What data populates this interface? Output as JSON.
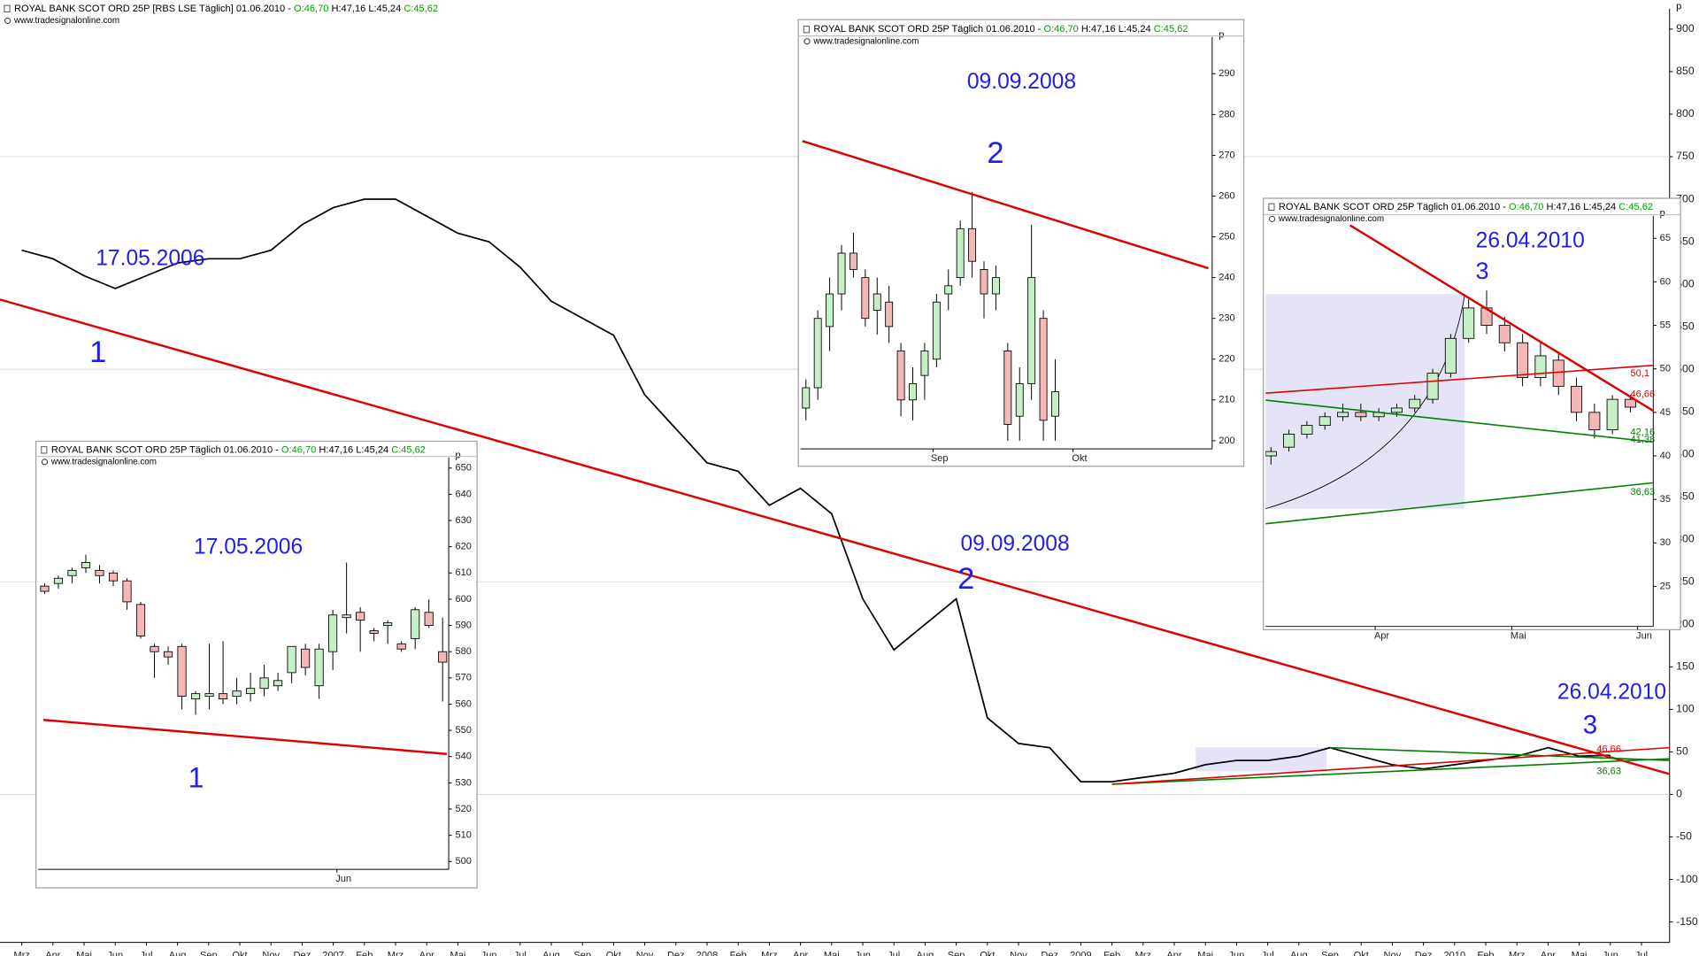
{
  "chart_data": [
    {
      "type": "line",
      "title": "ROYAL BANK SCOT ORD 25P [RBS LSE  Täglich] 01.06.2010 - ",
      "ohlc": [
        "O:46,70",
        "H:47,16",
        "L:45,24",
        "C:45,62"
      ],
      "ohlc_colors": [
        "#00a000",
        "#000000",
        "#000000",
        "#00a000"
      ],
      "source": "www.tradesignalonline.com",
      "y_unit": "p",
      "categories": [
        "Mrz",
        "Apr",
        "Mai",
        "Jun",
        "Jul",
        "Aug",
        "Sep",
        "Okt",
        "Nov",
        "Dez",
        "2007",
        "Feb",
        "Mrz",
        "Apr",
        "Mai",
        "Jun",
        "Jul",
        "Aug",
        "Sep",
        "Okt",
        "Nov",
        "Dez",
        "2008",
        "Feb",
        "Mrz",
        "Apr",
        "Mai",
        "Jun",
        "Jul",
        "Aug",
        "Sep",
        "Okt",
        "Nov",
        "Dez",
        "2009",
        "Feb",
        "Mrz",
        "Apr",
        "Mai",
        "Jun",
        "Jul",
        "Aug",
        "Sep",
        "Okt",
        "Nov",
        "Dez",
        "2010",
        "Feb",
        "Mrz",
        "Apr",
        "Mai",
        "Jun",
        "Jul"
      ],
      "values": [
        640,
        630,
        610,
        595,
        610,
        625,
        630,
        630,
        640,
        670,
        690,
        700,
        700,
        680,
        660,
        650,
        620,
        580,
        560,
        540,
        470,
        430,
        390,
        380,
        340,
        360,
        330,
        230,
        170,
        200,
        230,
        90,
        60,
        55,
        15,
        15,
        20,
        25,
        35,
        40,
        40,
        45,
        55,
        45,
        35,
        30,
        35,
        40,
        45,
        55,
        45,
        46,
        null
      ],
      "color": "#000000",
      "ylim": [
        -174,
        924
      ],
      "yticks": [
        900,
        850,
        800,
        750,
        700,
        650,
        600,
        550,
        500,
        450,
        400,
        350,
        300,
        250,
        200,
        150,
        100,
        50,
        0,
        -50,
        -100,
        -150
      ],
      "grid": true,
      "grid_values": [
        750,
        500,
        250,
        0
      ],
      "lines": [
        {
          "color": "#e00000",
          "start": [
            -0.7,
            582
          ],
          "end": [
            52.9,
            24
          ]
        },
        {
          "color": "#008000",
          "start": [
            42,
            55
          ],
          "end": [
            52.9,
            40
          ]
        },
        {
          "color": "#008000",
          "start": [
            35,
            12
          ],
          "end": [
            52.9,
            42
          ]
        },
        {
          "color": "#e00000",
          "start": [
            35,
            12
          ],
          "end": [
            52.9,
            55
          ]
        }
      ],
      "annotations": [
        {
          "text": "17.05.2006",
          "color": "#1e1ee6"
        },
        {
          "text": "1",
          "color": "#1e1ee6"
        },
        {
          "text": "09.09.2008",
          "color": "#1e1ee6"
        },
        {
          "text": "2",
          "color": "#1e1ee6"
        },
        {
          "text": "26.04.2010",
          "color": "#1e1ee6"
        },
        {
          "text": "3",
          "color": "#1e1ee6"
        },
        {
          "text": "46,66",
          "color": "#e00000"
        },
        {
          "text": "36,63",
          "color": "#008000"
        }
      ]
    },
    {
      "type": "candlestick",
      "title": "ROYAL BANK SCOT ORD 25P Täglich  01.06.2010 - ",
      "ohlc": [
        "O:46,70",
        "H:47,16",
        "L:45,24",
        "C:45,62"
      ],
      "ohlc_colors": [
        "#00a000",
        "#000000",
        "#000000",
        "#00a000"
      ],
      "source": "www.tradesignalonline.com",
      "y_unit": "p",
      "open": [
        605,
        606,
        609,
        612,
        611,
        610,
        607,
        598,
        582,
        580,
        582,
        562,
        563,
        564,
        563,
        564,
        566,
        567,
        572,
        581,
        567,
        580,
        593,
        595,
        588,
        590,
        583,
        585,
        595,
        580
      ],
      "high": [
        606,
        609,
        612,
        617,
        613,
        611,
        608,
        599,
        583,
        582,
        583,
        565,
        583,
        584,
        570,
        572,
        575,
        572,
        582,
        583,
        583,
        596,
        614,
        597,
        589,
        592,
        584,
        597,
        600,
        593
      ],
      "low": [
        602,
        604,
        606,
        610,
        606,
        605,
        596,
        585,
        570,
        575,
        558,
        556,
        558,
        560,
        560,
        561,
        563,
        565,
        568,
        571,
        562,
        573,
        587,
        580,
        584,
        583,
        580,
        581,
        589,
        561
      ],
      "close": [
        603,
        608,
        611,
        614,
        609,
        607,
        599,
        586,
        580,
        578,
        563,
        564,
        564,
        562,
        565,
        566,
        570,
        569,
        582,
        574,
        581,
        594,
        594,
        592,
        587,
        591,
        581,
        596,
        590,
        576
      ],
      "up_color": "#c8eec8",
      "down_color": "#f2b8b8",
      "x_labels": [
        "Jun"
      ],
      "x_label_at": [
        21.3
      ],
      "ylim": [
        497,
        654
      ],
      "yticks": [
        650,
        640,
        630,
        620,
        610,
        600,
        590,
        580,
        570,
        560,
        550,
        540,
        530,
        520,
        510,
        500
      ],
      "lines": [
        {
          "color": "#e00000",
          "start": [
            -0.1,
            554
          ],
          "end": [
            29.3,
            541
          ]
        }
      ],
      "annotations": [
        {
          "text": "17.05.2006",
          "color": "#1e1ee6"
        },
        {
          "text": "1",
          "color": "#1e1ee6"
        }
      ]
    },
    {
      "type": "candlestick",
      "title": "ROYAL BANK SCOT ORD 25P Täglich  01.06.2010 - ",
      "ohlc": [
        "O:46,70",
        "H:47,16",
        "L:45,24",
        "C:45,62"
      ],
      "ohlc_colors": [
        "#00a000",
        "#000000",
        "#000000",
        "#00a000"
      ],
      "source": "www.tradesignalonline.com",
      "y_unit": "p",
      "open": [
        208,
        213,
        228,
        236,
        246,
        240,
        232,
        234,
        222,
        210,
        216,
        220,
        236,
        240,
        252,
        242,
        236,
        222,
        206,
        214,
        230,
        206
      ],
      "high": [
        215,
        232,
        240,
        248,
        251,
        242,
        240,
        238,
        224,
        218,
        224,
        236,
        242,
        254,
        261,
        244,
        243,
        224,
        218,
        253,
        232,
        220
      ],
      "low": [
        205,
        210,
        222,
        232,
        240,
        228,
        226,
        224,
        206,
        205,
        210,
        218,
        232,
        238,
        240,
        230,
        232,
        200,
        200,
        210,
        200,
        200
      ],
      "close": [
        213,
        230,
        236,
        246,
        242,
        230,
        236,
        228,
        210,
        214,
        222,
        234,
        238,
        252,
        244,
        236,
        240,
        204,
        214,
        240,
        205,
        212
      ],
      "up_color": "#c8eec8",
      "down_color": "#f2b8b8",
      "x_labels": [
        "Sep",
        "Okt"
      ],
      "x_label_at": [
        10.7,
        22.5
      ],
      "ylim": [
        198,
        299
      ],
      "yticks": [
        290,
        280,
        270,
        260,
        250,
        240,
        230,
        220,
        210,
        200
      ],
      "lines": [
        {
          "color": "#e00000",
          "start": [
            -0.3,
            273.5
          ],
          "end": [
            33.9,
            242.3
          ]
        }
      ],
      "annotations": [
        {
          "text": "09.09.2008",
          "color": "#1e1ee6"
        },
        {
          "text": "2",
          "color": "#1e1ee6"
        }
      ]
    },
    {
      "type": "candlestick",
      "title": "ROYAL BANK SCOT ORD 25P Täglich  01.06.2010 - ",
      "ohlc": [
        "O:46,70",
        "H:47,16",
        "L:45,24",
        "C:45,62"
      ],
      "ohlc_colors": [
        "#00a000",
        "#000000",
        "#000000",
        "#00a000"
      ],
      "source": "www.tradesignalonline.com",
      "y_unit": "p",
      "open": [
        40,
        41,
        42.5,
        43.5,
        44.5,
        45,
        44.5,
        45,
        45.5,
        46.5,
        49.5,
        53.5,
        57,
        55,
        53,
        49,
        51,
        48,
        45,
        43,
        46.5
      ],
      "high": [
        41,
        43,
        44,
        45,
        46,
        46,
        45.5,
        46,
        47,
        50,
        54,
        58,
        59,
        56,
        54,
        53,
        52,
        49,
        46,
        47,
        47
      ],
      "low": [
        39,
        40.5,
        42,
        43,
        44,
        44,
        44,
        44.5,
        45,
        46,
        49,
        53,
        54,
        52,
        48,
        48,
        47,
        44,
        42,
        42.5,
        45
      ],
      "close": [
        40.5,
        42.5,
        43.5,
        44.5,
        45,
        44.5,
        45,
        45.5,
        46.5,
        49.5,
        53.5,
        57,
        55,
        53,
        49,
        51.5,
        48,
        45,
        43,
        46.5,
        45.6
      ],
      "up_color": "#c8eec8",
      "down_color": "#f2b8b8",
      "x_labels": [
        "Apr",
        "Mai",
        "Jun"
      ],
      "x_label_at": [
        5.8,
        13.4,
        20.4
      ],
      "ylim": [
        20.4,
        67.6
      ],
      "yticks": [
        65,
        60,
        55,
        50,
        45,
        40,
        35,
        30,
        25
      ],
      "lines": [
        {
          "color": "#e00000",
          "start": [
            4.4,
            66.5
          ],
          "end": [
            22.6,
            43.5
          ]
        },
        {
          "color": "#e00000",
          "start": [
            -0.3,
            47.2
          ],
          "end": [
            22.6,
            50.6
          ]
        },
        {
          "color": "#008000",
          "start": [
            -0.3,
            46.4
          ],
          "end": [
            22.6,
            41.3
          ]
        },
        {
          "color": "#008000",
          "start": [
            -0.3,
            32.2
          ],
          "end": [
            22.6,
            37.2
          ]
        }
      ],
      "annotations": [
        {
          "text": "26.04.2010",
          "color": "#1e1ee6"
        },
        {
          "text": "3",
          "color": "#1e1ee6"
        },
        {
          "text": "50,1",
          "color": "#e00000"
        },
        {
          "text": "46,66",
          "color": "#e00000"
        },
        {
          "text": "42,16",
          "color": "#008000"
        },
        {
          "text": "41,38",
          "color": "#008000"
        },
        {
          "text": "36,63",
          "color": "#008000"
        }
      ]
    }
  ]
}
